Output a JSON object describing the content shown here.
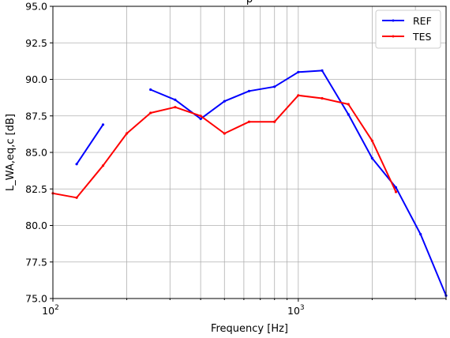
{
  "chart_data": {
    "type": "line",
    "title": "p",
    "xlabel": "Frequency [Hz]",
    "ylabel": "L_WA,eq,c [dB]",
    "xscale": "log",
    "xlim": [
      100,
      4000
    ],
    "ylim": [
      75.0,
      95.0
    ],
    "yticks": [
      75.0,
      77.5,
      80.0,
      82.5,
      85.0,
      87.5,
      90.0,
      92.5,
      95.0
    ],
    "ytick_labels": [
      "75.0",
      "77.5",
      "80.0",
      "82.5",
      "85.0",
      "87.5",
      "90.0",
      "92.5",
      "95.0"
    ],
    "xtick_major": [
      {
        "value": 100,
        "base": "10",
        "exp": "2"
      },
      {
        "value": 1000,
        "base": "10",
        "exp": "3"
      }
    ],
    "grid": true,
    "legend": "top-right",
    "series": [
      {
        "name": "REF",
        "color": "#0000ff",
        "x": [
          125,
          160,
          200,
          250,
          315,
          400,
          500,
          630,
          800,
          1000,
          1250,
          1600,
          2000,
          2500,
          3150,
          4000
        ],
        "y": [
          84.2,
          86.9,
          null,
          89.3,
          88.6,
          87.3,
          88.5,
          89.2,
          89.5,
          90.5,
          90.6,
          87.6,
          84.6,
          82.6,
          79.4,
          75.2
        ]
      },
      {
        "name": "TES",
        "color": "#ff0000",
        "x": [
          100,
          125,
          160,
          200,
          250,
          315,
          400,
          500,
          630,
          800,
          1000,
          1250,
          1600,
          2000,
          2500
        ],
        "y": [
          82.2,
          81.9,
          84.1,
          86.3,
          87.7,
          88.1,
          87.5,
          86.3,
          87.1,
          87.1,
          88.9,
          88.7,
          88.3,
          85.8,
          82.3
        ]
      }
    ]
  }
}
